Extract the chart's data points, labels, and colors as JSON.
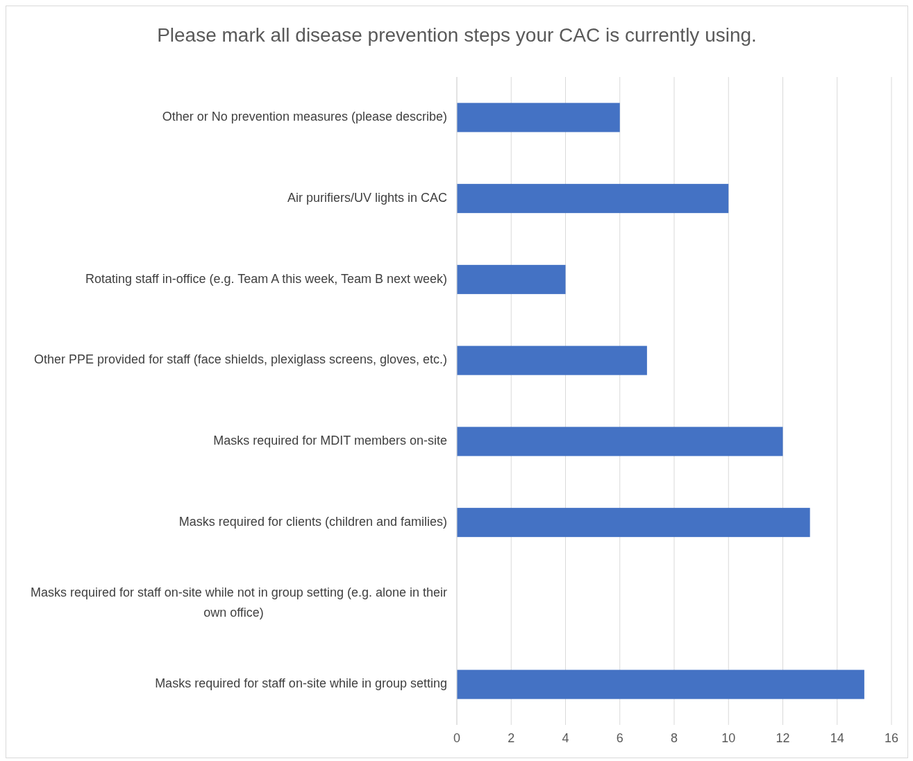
{
  "chart_data": {
    "type": "bar",
    "orientation": "horizontal",
    "title": "Please mark all disease prevention steps your CAC is currently using.",
    "categories": [
      "Other or No prevention measures (please describe)",
      "Air purifiers/UV lights in CAC",
      "Rotating staff in-office (e.g. Team A this week, Team B next week)",
      "Other PPE provided for staff (face shields, plexiglass screens, gloves, etc.)",
      "Masks required for MDIT members on-site",
      "Masks required for clients (children and families)",
      "Masks required for staff on-site while not in group setting (e.g. alone in their own office)",
      "Masks required for staff on-site while in group setting"
    ],
    "values": [
      6,
      10,
      4,
      7,
      12,
      13,
      0,
      15
    ],
    "color": "#4472c4",
    "xlim": [
      0,
      16
    ],
    "xticks": [
      0,
      2,
      4,
      6,
      8,
      10,
      12,
      14,
      16
    ],
    "grid": "x"
  }
}
